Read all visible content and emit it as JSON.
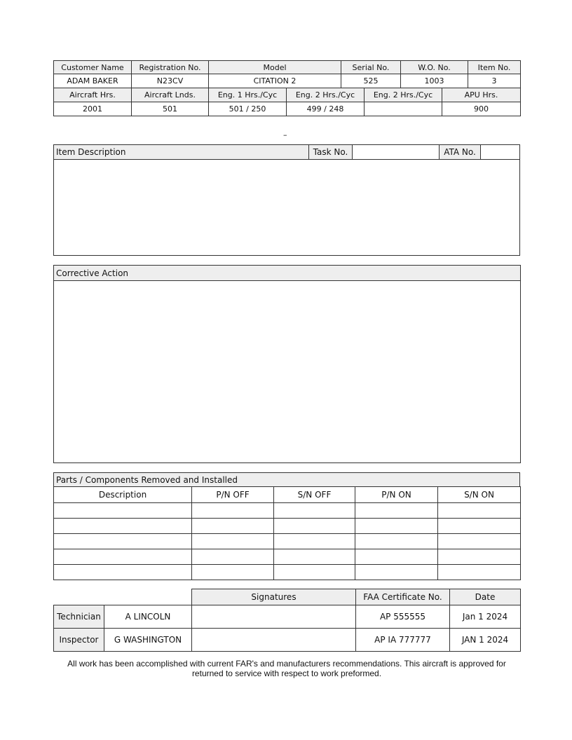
{
  "header": {
    "row1_labels": [
      "Customer Name",
      "Registration No.",
      "Model",
      "Serial No.",
      "W.O. No.",
      "Item No."
    ],
    "row1_values": [
      "ADAM BAKER",
      "N23CV",
      "CITATION 2",
      "525",
      "1003",
      "3"
    ],
    "row2_labels": [
      "Aircraft Hrs.",
      "Aircraft Lnds.",
      "Eng. 1 Hrs./Cyc",
      "Eng. 2 Hrs./Cyc",
      "Eng. 2 Hrs./Cyc",
      "APU Hrs."
    ],
    "row2_values": [
      "2001",
      "501",
      "501 /  250",
      "499  / 248",
      "",
      "900"
    ]
  },
  "separator": "–",
  "item": {
    "title": "Item Description",
    "task_label": "Task No.",
    "task_value": "",
    "ata_label": "ATA No.",
    "ata_value": "",
    "body": ""
  },
  "corrective": {
    "title": "Corrective Action",
    "body": ""
  },
  "parts": {
    "title": "Parts / Components Removed and Installed",
    "columns": [
      "Description",
      "P/N OFF",
      "S/N OFF",
      "P/N ON",
      "S/N ON"
    ],
    "rows": [
      [
        "",
        "",
        "",
        "",
        ""
      ],
      [
        "",
        "",
        "",
        "",
        ""
      ],
      [
        "",
        "",
        "",
        "",
        ""
      ],
      [
        "",
        "",
        "",
        "",
        ""
      ],
      [
        "",
        "",
        "",
        "",
        ""
      ]
    ]
  },
  "signoff": {
    "columns": [
      "Signatures",
      "FAA Certificate No.",
      "Date"
    ],
    "rows": [
      {
        "role": "Technician",
        "name": "A LINCOLN",
        "signature": "",
        "cert": "AP 555555",
        "date": "Jan 1 2024"
      },
      {
        "role": "Inspector",
        "name": "G WASHINGTON",
        "signature": "",
        "cert": "AP IA  777777",
        "date": "JAN 1  2024"
      }
    ]
  },
  "footer": "All work has been accomplished with current FAR's and manufacturers recommendations. This aircraft is approved for returned to service with respect to work preformed."
}
